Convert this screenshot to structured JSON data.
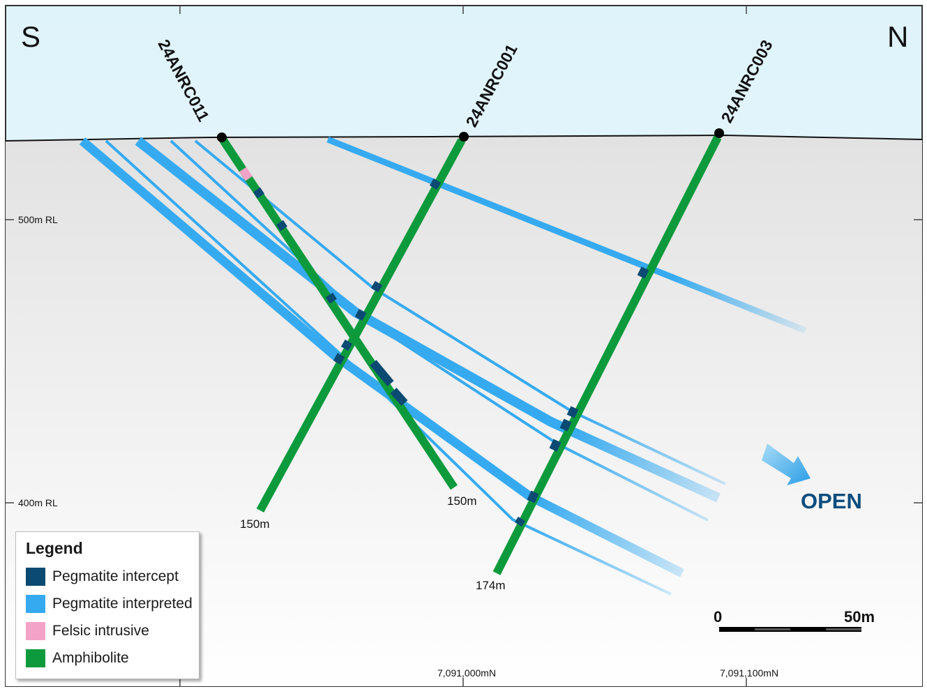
{
  "direction": {
    "left": "S",
    "right": "N"
  },
  "elevation_labels": [
    "500m RL",
    "400m RL"
  ],
  "northing_labels": [
    "7,091,000mN",
    "7,091,100mN"
  ],
  "holes": [
    {
      "id": "24ANRC011",
      "depth_label": "150m"
    },
    {
      "id": "24ANRC001",
      "depth_label": "150m"
    },
    {
      "id": "24ANRC003",
      "depth_label": "174m"
    }
  ],
  "open_label": "OPEN",
  "scale_bar": {
    "start": "0",
    "end": "50m"
  },
  "legend": {
    "title": "Legend",
    "items": [
      {
        "label": "Pegmatite intercept",
        "color": "#0b4a72"
      },
      {
        "label": "Pegmatite interpreted",
        "color": "#36aaf0"
      },
      {
        "label": "Felsic intrusive",
        "color": "#f4a3c8"
      },
      {
        "label": "Amphibolite",
        "color": "#0d9a3c"
      }
    ]
  },
  "colors": {
    "sky": "#e8f6fc",
    "ground": "#e6e6e6",
    "amphibolite": "#0d9a3c",
    "pegmatite": "#36aaf0",
    "intercept": "#0b4a72",
    "felsic": "#f4a3c8",
    "open_text": "#0b4d7e"
  }
}
